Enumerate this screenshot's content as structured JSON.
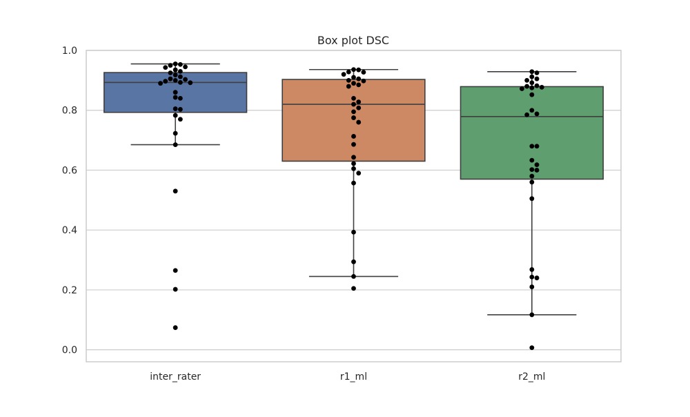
{
  "chart_data": {
    "type": "box",
    "title": "Box plot DSC",
    "xlabel": "",
    "ylabel": "",
    "ylim": [
      -0.04,
      1.0
    ],
    "yticks": [
      "0.0",
      "0.2",
      "0.4",
      "0.6",
      "0.8",
      "1.0"
    ],
    "grid": "horizontal",
    "categories": [
      "inter_rater",
      "r1_ml",
      "r2_ml"
    ],
    "colors": [
      "#5875a4",
      "#cc8963",
      "#5f9e6e"
    ],
    "point_color": "#000000",
    "edge_color": "#3f3f3f",
    "boxes": [
      {
        "name": "inter_rater",
        "whisker_low": 0.685,
        "q1": 0.793,
        "median": 0.893,
        "q3": 0.926,
        "whisker_high": 0.955
      },
      {
        "name": "r1_ml",
        "whisker_low": 0.245,
        "q1": 0.63,
        "median": 0.82,
        "q3": 0.903,
        "whisker_high": 0.936
      },
      {
        "name": "r2_ml",
        "whisker_low": 0.117,
        "q1": 0.57,
        "median": 0.779,
        "q3": 0.879,
        "whisker_high": 0.929
      }
    ],
    "points": [
      [
        0.955,
        0.953,
        0.95,
        0.945,
        0.943,
        0.935,
        0.93,
        0.925,
        0.918,
        0.912,
        0.905,
        0.903,
        0.9,
        0.897,
        0.893,
        0.892,
        0.89,
        0.86,
        0.843,
        0.84,
        0.805,
        0.803,
        0.783,
        0.77,
        0.723,
        0.685,
        0.53,
        0.265,
        0.202,
        0.074
      ],
      [
        0.936,
        0.935,
        0.928,
        0.927,
        0.92,
        0.91,
        0.905,
        0.9,
        0.898,
        0.89,
        0.885,
        0.88,
        0.84,
        0.828,
        0.82,
        0.808,
        0.795,
        0.775,
        0.76,
        0.713,
        0.686,
        0.643,
        0.622,
        0.605,
        0.59,
        0.557,
        0.393,
        0.294,
        0.245,
        0.205
      ],
      [
        0.929,
        0.925,
        0.912,
        0.905,
        0.9,
        0.892,
        0.882,
        0.88,
        0.877,
        0.875,
        0.872,
        0.852,
        0.8,
        0.788,
        0.785,
        0.68,
        0.68,
        0.633,
        0.618,
        0.602,
        0.6,
        0.58,
        0.56,
        0.505,
        0.268,
        0.243,
        0.24,
        0.21,
        0.117,
        0.007
      ]
    ]
  }
}
